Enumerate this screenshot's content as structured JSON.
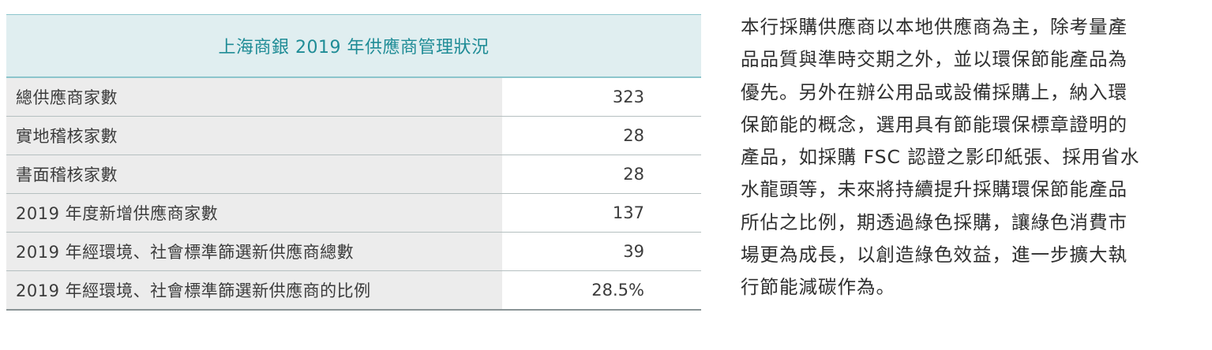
{
  "table": {
    "title": "上海商銀 2019 年供應商管理狀況",
    "rows": [
      {
        "label": "總供應商家數",
        "value": "323"
      },
      {
        "label": "實地稽核家數",
        "value": "28"
      },
      {
        "label": "書面稽核家數",
        "value": "28"
      },
      {
        "label": "2019 年度新增供應商家數",
        "value": "137"
      },
      {
        "label": "2019 年經環境、社會標準篩選新供應商總數",
        "value": "39"
      },
      {
        "label": "2019 年經環境、社會標準篩選新供應商的比例",
        "value": "28.5%"
      }
    ]
  },
  "colors": {
    "header_bg": "#e0eef0",
    "header_text": "#1f8c96",
    "label_bg": "#ececec"
  },
  "paragraph": {
    "lines": [
      "本行採購供應商以本地供應商為主，除考量產",
      "品品質與準時交期之外，並以環保節能產品為",
      "優先。另外在辦公用品或設備採購上，納入環",
      "保節能的概念，選用具有節能環保標章證明的",
      "產品，如採購 FSC 認證之影印紙張、採用省水",
      "水龍頭等，未來將持續提升採購環保節能產品",
      "所佔之比例，期透過綠色採購，讓綠色消費市",
      "場更為成長，以創造綠色效益，進一步擴大執",
      "行節能減碳作為。"
    ]
  }
}
